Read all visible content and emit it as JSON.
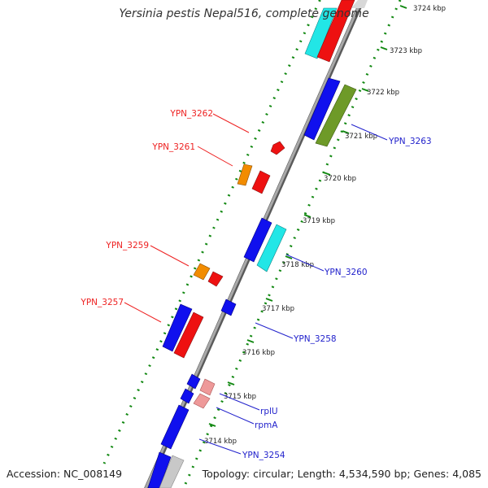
{
  "title": "Yersinia pestis Nepal516, complete genome",
  "footer": {
    "accession": "Accession: NC_008149",
    "summary": "Topology: circular; Length: 4,534,590 bp; Genes: 4,085"
  },
  "scale_ticks": [
    "3724 kbp",
    "3723 kbp",
    "3722 kbp",
    "3721 kbp",
    "3720 kbp",
    "3719 kbp",
    "3718 kbp",
    "3717 kbp",
    "3716 kbp",
    "3715 kbp",
    "3714 kbp"
  ],
  "gene_labels_left": [
    "YPN_3262",
    "YPN_3261",
    "YPN_3259",
    "YPN_3257"
  ],
  "gene_labels_right": [
    "YPN_3263",
    "YPN_3260",
    "YPN_3258",
    "rplU",
    "rpmA",
    "YPN_3254"
  ],
  "colors": {
    "blue": "#1010ee",
    "red": "#ee1111",
    "orange": "#f28c00",
    "cyan": "#22e6e6",
    "olive": "#6e9a28",
    "pink": "#ee9999",
    "gray": "#c8c8c8",
    "backbone": "#8a8a8a",
    "dots_outer": "#118811",
    "label_left": "#ee2222",
    "label_right": "#2222cc"
  }
}
